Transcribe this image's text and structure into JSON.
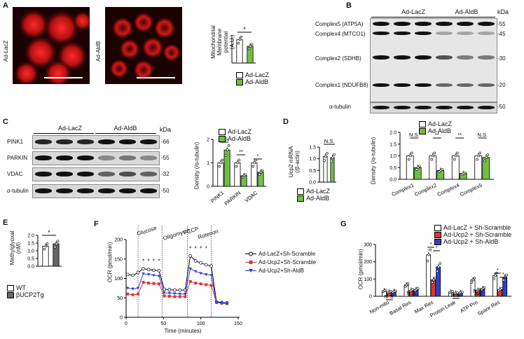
{
  "panels": {
    "A": "A",
    "B": "B",
    "C": "C",
    "D": "D",
    "E": "E",
    "F": "F",
    "G": "G"
  },
  "A": {
    "img_labels": [
      "Ad-LacZ",
      "Ad-AldB"
    ],
    "ylabel": "Mitochondrial\nMembrane potential\n(A.U.)",
    "sig": "*",
    "legend": [
      "Ad-LacZ",
      "Ad-AldB"
    ],
    "chart_data": {
      "type": "bar",
      "categories": [
        "Ad-LacZ",
        "Ad-AldB"
      ],
      "values": [
        1.0,
        0.72
      ],
      "ylim": [
        0,
        1.2
      ]
    }
  },
  "B": {
    "groups": [
      "Ad-LacZ",
      "Ad-AldB"
    ],
    "kda": "kDa",
    "rows": [
      {
        "label": "Complex5 (ATP5A)",
        "kda": "-55"
      },
      {
        "label": "Complex4 (MTCO1)",
        "kda": "-45"
      },
      {
        "label": "Complex2 (SDHB)",
        "kda": "-30"
      },
      {
        "label": "Complex1 (NDUFB8)",
        "kda": "-20"
      },
      {
        "label": "α-tubulin",
        "kda": "-50"
      }
    ]
  },
  "C": {
    "groups": [
      "Ad-LacZ",
      "Ad-AldB"
    ],
    "kda": "kDa",
    "rows": [
      {
        "label": "PINK1",
        "kda": "-66"
      },
      {
        "label": "PARKIN",
        "kda": "-55"
      },
      {
        "label": "VDAC",
        "kda": "-32"
      },
      {
        "label": "α-tubulin",
        "kda": "-50"
      }
    ],
    "ylabel": "Density (/α-tubulin)",
    "legend": [
      "Ad-LacZ",
      "Ad-AldB"
    ],
    "sig": [
      "N.S.",
      "**",
      "*"
    ],
    "chart_data": {
      "type": "bar",
      "categories": [
        "PINK1",
        "PARKIN",
        "VDAC"
      ],
      "series": [
        {
          "name": "Ad-LacZ",
          "values": [
            1.0,
            1.0,
            1.0
          ]
        },
        {
          "name": "Ad-AldB",
          "values": [
            1.55,
            0.45,
            0.6
          ]
        }
      ],
      "ylim": [
        0,
        2
      ],
      "yticks": [
        "0",
        "1",
        "2"
      ]
    }
  },
  "D": {
    "ylabel": "Ucp2 mRNA\n(/β-actin)",
    "sig": "N.S.",
    "legend": [
      "Ad-LacZ",
      "Ad-AldB"
    ],
    "chart_data": {
      "type": "bar",
      "categories": [
        "Ad-LacZ",
        "Ad-AldB"
      ],
      "values": [
        1.1,
        1.05
      ],
      "ylim": [
        0,
        1.5
      ],
      "yticks": [
        "0.0",
        "0.5",
        "1.0",
        "1.5"
      ]
    }
  },
  "D2": {
    "ylabel": "Density (/α-tubulin)",
    "legend": [
      "Ad-LacZ",
      "Ad-AldB"
    ],
    "sig": [
      "N.S.",
      "**",
      "**",
      "N.S."
    ],
    "chart_data": {
      "type": "bar",
      "categories": [
        "Complex1",
        "Complex2",
        "Complex4",
        "Complex5"
      ],
      "series": [
        {
          "name": "Ad-LacZ",
          "values": [
            1.0,
            1.0,
            1.0,
            1.0
          ]
        },
        {
          "name": "Ad-AldB",
          "values": [
            0.5,
            0.38,
            0.25,
            0.93
          ]
        }
      ],
      "ylim": [
        0,
        2
      ],
      "yticks": [
        "0.0",
        "0.5",
        "1.0",
        "1.5",
        "2.0"
      ]
    }
  },
  "E": {
    "ylabel": "Methylglyoxal\n(nM)",
    "sig": "*",
    "legend": [
      "WT",
      "βUCP2Tg"
    ],
    "chart_data": {
      "type": "bar",
      "categories": [
        "WT",
        "βUCP2Tg"
      ],
      "values": [
        1.3,
        1.45
      ],
      "ylim": [
        0,
        2.0
      ],
      "yticks": [
        "0.0",
        "0.5",
        "1.0",
        "1.5",
        "2.0"
      ]
    }
  },
  "F": {
    "ylabel": "OCR (pmol/min)",
    "xlabel": "Time (minutes)",
    "injections": [
      "Glucose",
      "Oligomycin",
      "FCCP",
      "Rotenon"
    ],
    "legend": [
      "Ad-LacZ+Sh-Scramble",
      "Ad-Ucp2+Sh-Scramble",
      "Ad-Ucp2+Sh-AldB"
    ],
    "chart_data": {
      "type": "line",
      "x": [
        2,
        9,
        16,
        23,
        30,
        37,
        44,
        51,
        58,
        65,
        72,
        79,
        86,
        93,
        100,
        107,
        114,
        121,
        128,
        135
      ],
      "series": [
        {
          "name": "Ad-LacZ+Sh-Scramble",
          "values": [
            110,
            108,
            115,
            125,
            123,
            121,
            120,
            72,
            71,
            70,
            70,
            70,
            158,
            145,
            140,
            135,
            132,
            40,
            38,
            37
          ]
        },
        {
          "name": "Ad-Ucp2+Sh-Scramble",
          "values": [
            60,
            58,
            60,
            90,
            88,
            87,
            86,
            55,
            54,
            53,
            53,
            53,
            92,
            88,
            86,
            84,
            82,
            38,
            36,
            35
          ]
        },
        {
          "name": "Ad-Ucp2+Sh-AldB",
          "values": [
            75,
            73,
            75,
            112,
            110,
            108,
            106,
            63,
            62,
            61,
            60,
            60,
            125,
            118,
            113,
            110,
            108,
            38,
            37,
            36
          ]
        }
      ],
      "xlim": [
        0,
        150
      ],
      "ylim": [
        0,
        200
      ],
      "xticks": [
        "0",
        "50",
        "100",
        "150"
      ],
      "yticks": [
        "0",
        "50",
        "100",
        "150",
        "200"
      ],
      "sig": "*"
    }
  },
  "G": {
    "ylabel": "OCR (pmol/min)",
    "legend": [
      "Ad-LacZ + Sh-Scramble",
      "Ad-Ucp2 + Sh-Scramble",
      "Ad-Ucp2 + Sh-AldB"
    ],
    "sig": [
      "N.S.",
      "N.S.",
      "*",
      "*",
      "N.S.",
      "N.S.",
      "*",
      "*"
    ],
    "chart_data": {
      "type": "bar",
      "categories": [
        "Non-mito",
        "Basal Res",
        "Max Res",
        "Proton Leak",
        "ATP Pro",
        "Spare Res"
      ],
      "series": [
        {
          "name": "Ad-LacZ + Sh-Scramble",
          "values": [
            32,
            65,
            240,
            25,
            95,
            120
          ]
        },
        {
          "name": "Ad-Ucp2 + Sh-Scramble",
          "values": [
            25,
            35,
            95,
            18,
            35,
            40
          ]
        },
        {
          "name": "Ad-Ucp2 + Sh-AldB",
          "values": [
            28,
            40,
            170,
            22,
            45,
            110
          ]
        }
      ],
      "ylim": [
        0,
        300
      ],
      "yticks": [
        "0",
        "100",
        "200",
        "300"
      ]
    }
  },
  "colors": {
    "white": "#ffffff",
    "green": "#6fbf45",
    "red": "#d9373b",
    "blue": "#2e3fd8",
    "black": "#000000"
  }
}
